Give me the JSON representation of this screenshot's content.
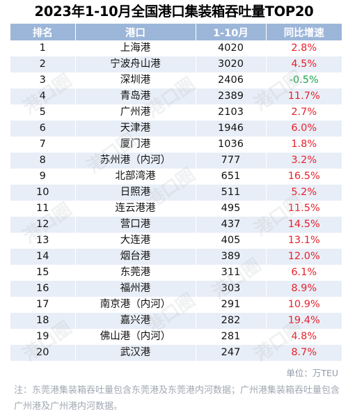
{
  "chart_data": {
    "type": "table",
    "title": "2023年1-10月全国港口集装箱吞吐量TOP20",
    "columns": [
      "排名",
      "港口",
      "1-10月",
      "同比增速"
    ],
    "rows": [
      {
        "rank": "1",
        "port": "上海港",
        "value": "4020",
        "growth": "2.8%",
        "growth_value": 2.8
      },
      {
        "rank": "2",
        "port": "宁波舟山港",
        "value": "3020",
        "growth": "4.5%",
        "growth_value": 4.5
      },
      {
        "rank": "3",
        "port": "深圳港",
        "value": "2406",
        "growth": "-0.5%",
        "growth_value": -0.5
      },
      {
        "rank": "4",
        "port": "青岛港",
        "value": "2389",
        "growth": "11.7%",
        "growth_value": 11.7
      },
      {
        "rank": "5",
        "port": "广州港",
        "value": "2103",
        "growth": "2.7%",
        "growth_value": 2.7
      },
      {
        "rank": "6",
        "port": "天津港",
        "value": "1946",
        "growth": "6.0%",
        "growth_value": 6.0
      },
      {
        "rank": "7",
        "port": "厦门港",
        "value": "1036",
        "growth": "1.8%",
        "growth_value": 1.8
      },
      {
        "rank": "8",
        "port": "苏州港（内河）",
        "value": "777",
        "growth": "3.2%",
        "growth_value": 3.2
      },
      {
        "rank": "9",
        "port": "北部湾港",
        "value": "651",
        "growth": "16.5%",
        "growth_value": 16.5
      },
      {
        "rank": "10",
        "port": "日照港",
        "value": "511",
        "growth": "5.2%",
        "growth_value": 5.2
      },
      {
        "rank": "11",
        "port": "连云港港",
        "value": "495",
        "growth": "11.5%",
        "growth_value": 11.5
      },
      {
        "rank": "12",
        "port": "营口港",
        "value": "437",
        "growth": "14.5%",
        "growth_value": 14.5
      },
      {
        "rank": "13",
        "port": "大连港",
        "value": "405",
        "growth": "13.1%",
        "growth_value": 13.1
      },
      {
        "rank": "14",
        "port": "烟台港",
        "value": "389",
        "growth": "12.0%",
        "growth_value": 12.0
      },
      {
        "rank": "15",
        "port": "东莞港",
        "value": "311",
        "growth": "6.1%",
        "growth_value": 6.1
      },
      {
        "rank": "16",
        "port": "福州港",
        "value": "303",
        "growth": "8.9%",
        "growth_value": 8.9
      },
      {
        "rank": "17",
        "port": "南京港（内河）",
        "value": "291",
        "growth": "10.9%",
        "growth_value": 10.9
      },
      {
        "rank": "18",
        "port": "嘉兴港",
        "value": "282",
        "growth": "19.4%",
        "growth_value": 19.4
      },
      {
        "rank": "19",
        "port": "佛山港（内河）",
        "value": "281",
        "growth": "4.8%",
        "growth_value": 4.8
      },
      {
        "rank": "20",
        "port": "武汉港",
        "value": "247",
        "growth": "8.7%",
        "growth_value": 8.7
      }
    ],
    "unit": "单位：万TEU",
    "note": "注：东莞港集装箱吞吐量包含东莞港及东莞港内河数据；广州港集装箱吞吐量包含广州港及广州港内河数据。"
  },
  "colors": {
    "header_bg": "#9cb6d9",
    "stripe_bg": "#e8eef7",
    "positive_growth": "#e8212b",
    "negative_growth": "#1aa34a"
  }
}
